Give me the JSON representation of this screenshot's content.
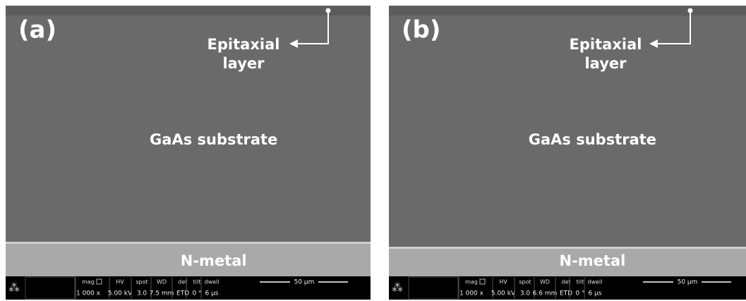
{
  "panels": [
    {
      "label": "(a)",
      "epitaxial": [
        "Epitaxial",
        "layer"
      ],
      "substrate": "GaAs substrate",
      "metal": "N-metal",
      "info": {
        "headers": [
          "mag",
          "HV",
          "spot",
          "WD",
          "det",
          "tilt",
          "dwell"
        ],
        "values": [
          "1 000 x",
          "5.00 kV",
          "3.0",
          "7.5 mm",
          "ETD",
          "0 °",
          "6 µs"
        ],
        "scale": "50 µm"
      }
    },
    {
      "label": "(b)",
      "epitaxial": [
        "Epitaxial",
        "layer"
      ],
      "substrate": "GaAs substrate",
      "metal": "N-metal",
      "info": {
        "headers": [
          "mag",
          "HV",
          "spot",
          "WD",
          "det",
          "tilt",
          "dwell"
        ],
        "values": [
          "1 000 x",
          "5.00 kV",
          "3.0",
          "6.6 mm",
          "ETD",
          "0 °",
          "6 µs"
        ],
        "scale": "50 µm"
      }
    }
  ]
}
